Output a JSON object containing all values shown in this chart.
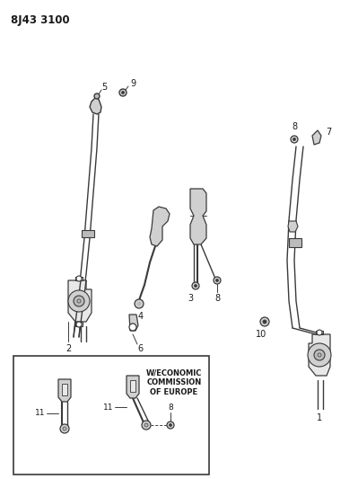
{
  "title": "8J43 3100",
  "background_color": "#ffffff",
  "line_color": "#3a3a3a",
  "text_color": "#1a1a1a",
  "box_text": "W/ECONOMIC\nCOMMISSION\nOF EUROPE",
  "figsize": [
    3.99,
    5.33
  ],
  "dpi": 100
}
